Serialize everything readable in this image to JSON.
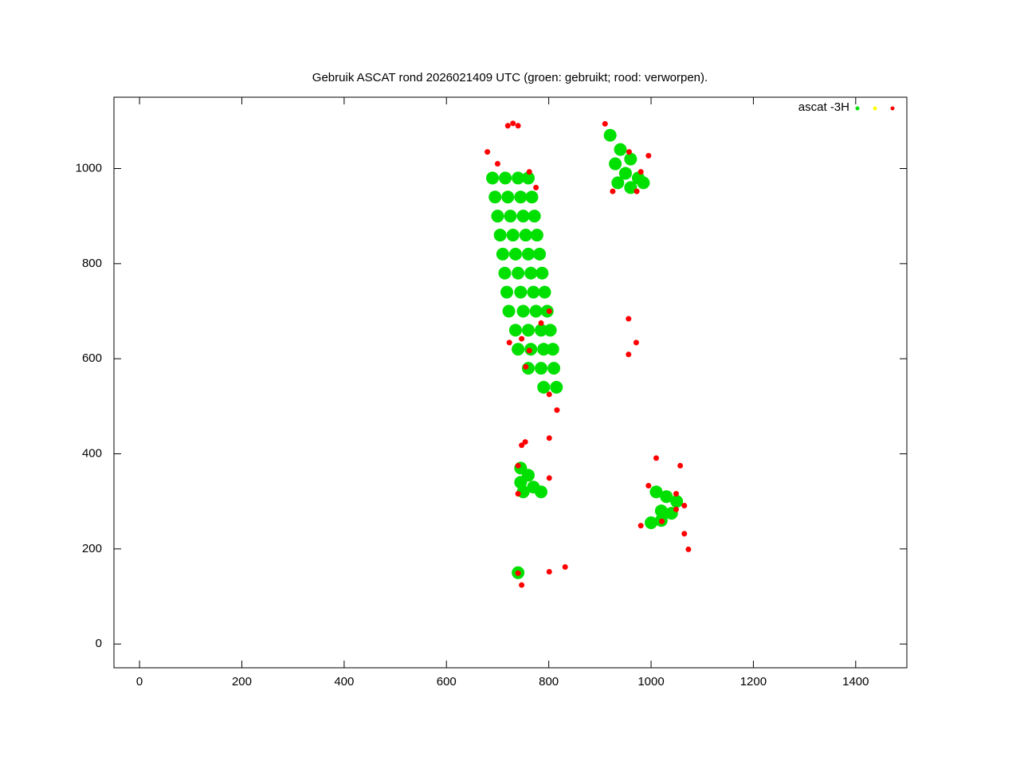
{
  "chart_data": {
    "type": "scatter",
    "title": "Gebruik ASCAT rond 2026021409 UTC (groen: gebruikt; rood: verworpen).",
    "legend": {
      "label": "ascat -3H",
      "position": "top-right"
    },
    "xlim": [
      -50,
      1500
    ],
    "ylim": [
      -50,
      1150
    ],
    "xticks": [
      0,
      200,
      400,
      600,
      800,
      1000,
      1200,
      1400
    ],
    "yticks": [
      0,
      200,
      400,
      600,
      800,
      1000
    ],
    "series": [
      {
        "color": "#00e000",
        "x": [
          690,
          715,
          740,
          760,
          695,
          720,
          745,
          767,
          700,
          725,
          750,
          772,
          705,
          730,
          755,
          777,
          710,
          735,
          760,
          782,
          714,
          740,
          765,
          787,
          718,
          745,
          770,
          792,
          722,
          750,
          775,
          797,
          735,
          760,
          785,
          803,
          740,
          765,
          790,
          808,
          760,
          785,
          810,
          790,
          815,
          920,
          940,
          960,
          930,
          950,
          975,
          935,
          960,
          985,
          745,
          745,
          760,
          770,
          785,
          750,
          1010,
          1030,
          1050,
          1020,
          1040,
          1000,
          1020,
          740
        ],
        "y": [
          980,
          980,
          980,
          980,
          940,
          940,
          940,
          940,
          900,
          900,
          900,
          900,
          860,
          860,
          860,
          860,
          820,
          820,
          820,
          820,
          780,
          780,
          780,
          780,
          740,
          740,
          740,
          740,
          700,
          700,
          700,
          700,
          660,
          660,
          660,
          660,
          620,
          620,
          620,
          620,
          580,
          580,
          580,
          540,
          540,
          1070,
          1040,
          1020,
          1010,
          990,
          980,
          970,
          960,
          970,
          370,
          340,
          355,
          330,
          320,
          320,
          320,
          310,
          300,
          280,
          275,
          255,
          260,
          150
        ]
      },
      {
        "color": "#ffff00",
        "x": [],
        "y": []
      },
      {
        "color": "#ff0000",
        "x": [
          720,
          730,
          740,
          680,
          700,
          762,
          775,
          747,
          723,
          762,
          755,
          801,
          816,
          801,
          785,
          910,
          957,
          995,
          980,
          972,
          925,
          956,
          971,
          956,
          747,
          801,
          740,
          801,
          740,
          740,
          747,
          801,
          832,
          995,
          1049,
          1065,
          980,
          1021,
          1065,
          1073,
          1049,
          1010,
          1057,
          754
        ],
        "y": [
          1090,
          1095,
          1090,
          1035,
          1010,
          993,
          960,
          642,
          634,
          617,
          583,
          525,
          492,
          700,
          675,
          1094,
          1035,
          1027,
          993,
          952,
          952,
          684,
          634,
          609,
          418,
          433,
          375,
          349,
          316,
          149,
          124,
          152,
          162,
          333,
          316,
          291,
          249,
          258,
          232,
          199,
          283,
          391,
          375,
          425
        ]
      }
    ]
  }
}
